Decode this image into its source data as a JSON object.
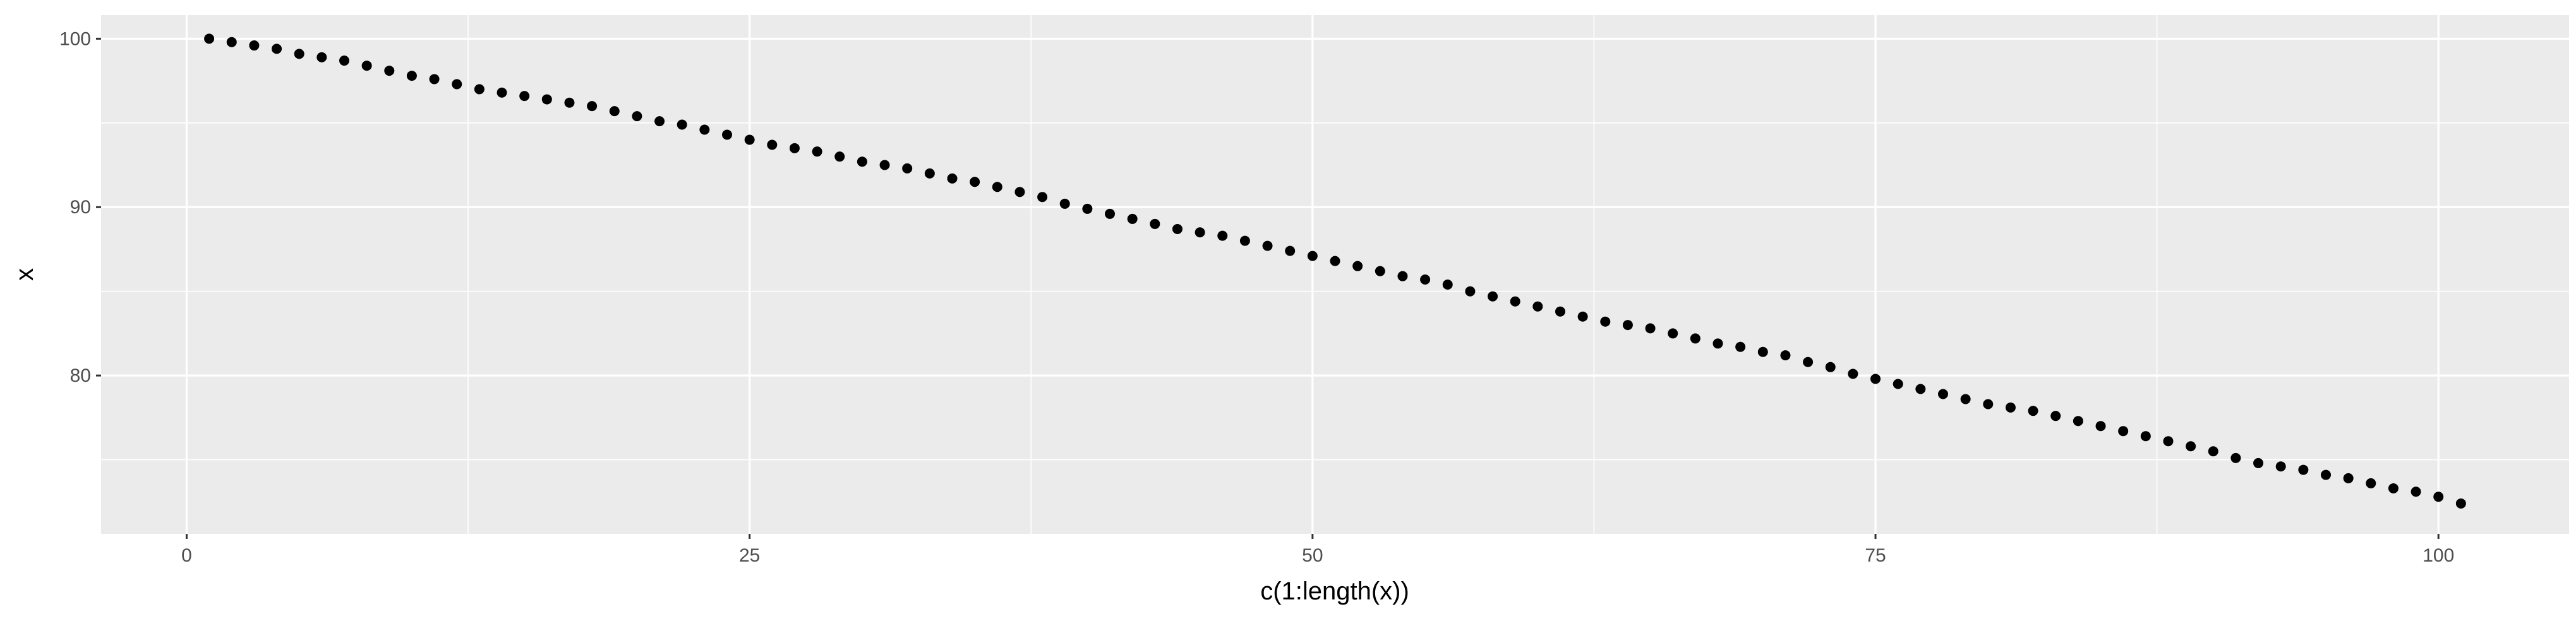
{
  "chart_data": {
    "type": "scatter",
    "title": "",
    "xlabel": "c(1:length(x))",
    "ylabel": "x",
    "xlim": [
      -3.8,
      105.8
    ],
    "ylim": [
      70.6,
      101.4
    ],
    "x_ticks": [
      0,
      25,
      50,
      75,
      100
    ],
    "y_ticks": [
      80,
      90,
      100
    ],
    "x_tick_labels": [
      "0",
      "25",
      "50",
      "75",
      "100"
    ],
    "y_tick_labels": [
      "80",
      "90",
      "100"
    ],
    "grid": true,
    "legend": "none",
    "colors": {
      "panel": "#ebebeb",
      "grid": "#ffffff",
      "point": "#000000"
    },
    "series": [
      {
        "x": [
          1,
          2,
          3,
          4,
          5,
          6,
          7,
          8,
          9,
          10,
          11,
          12,
          13,
          14,
          15,
          16,
          17,
          18,
          19,
          20,
          21,
          22,
          23,
          24,
          25,
          26,
          27,
          28,
          29,
          30,
          31,
          32,
          33,
          34,
          35,
          36,
          37,
          38,
          39,
          40,
          41,
          42,
          43,
          44,
          45,
          46,
          47,
          48,
          49,
          50,
          51,
          52,
          53,
          54,
          55,
          56,
          57,
          58,
          59,
          60,
          61,
          62,
          63,
          64,
          65,
          66,
          67,
          68,
          69,
          70,
          71,
          72,
          73,
          74,
          75,
          76,
          77,
          78,
          79,
          80,
          81,
          82,
          83,
          84,
          85,
          86,
          87,
          88,
          89,
          90,
          91,
          92,
          93,
          94,
          95,
          96,
          97,
          98,
          99,
          100,
          101
        ],
        "y": [
          100.0,
          99.8,
          99.6,
          99.4,
          99.1,
          98.9,
          98.7,
          98.4,
          98.1,
          97.8,
          97.6,
          97.3,
          97.0,
          96.8,
          96.6,
          96.4,
          96.2,
          96.0,
          95.7,
          95.4,
          95.1,
          94.9,
          94.6,
          94.3,
          94.0,
          93.7,
          93.5,
          93.3,
          93.0,
          92.7,
          92.5,
          92.3,
          92.0,
          91.7,
          91.5,
          91.2,
          90.9,
          90.6,
          90.2,
          89.9,
          89.6,
          89.3,
          89.0,
          88.7,
          88.5,
          88.3,
          88.0,
          87.7,
          87.4,
          87.1,
          86.8,
          86.5,
          86.2,
          85.9,
          85.7,
          85.4,
          85.0,
          84.7,
          84.4,
          84.1,
          83.8,
          83.5,
          83.2,
          83.0,
          82.8,
          82.5,
          82.2,
          81.9,
          81.7,
          81.4,
          81.2,
          80.8,
          80.5,
          80.1,
          79.8,
          79.5,
          79.2,
          78.9,
          78.6,
          78.3,
          78.1,
          77.9,
          77.6,
          77.3,
          77.0,
          76.7,
          76.4,
          76.1,
          75.8,
          75.5,
          75.1,
          74.8,
          74.6,
          74.4,
          74.1,
          73.9,
          73.6,
          73.3,
          73.1,
          72.8,
          72.4
        ]
      }
    ]
  }
}
